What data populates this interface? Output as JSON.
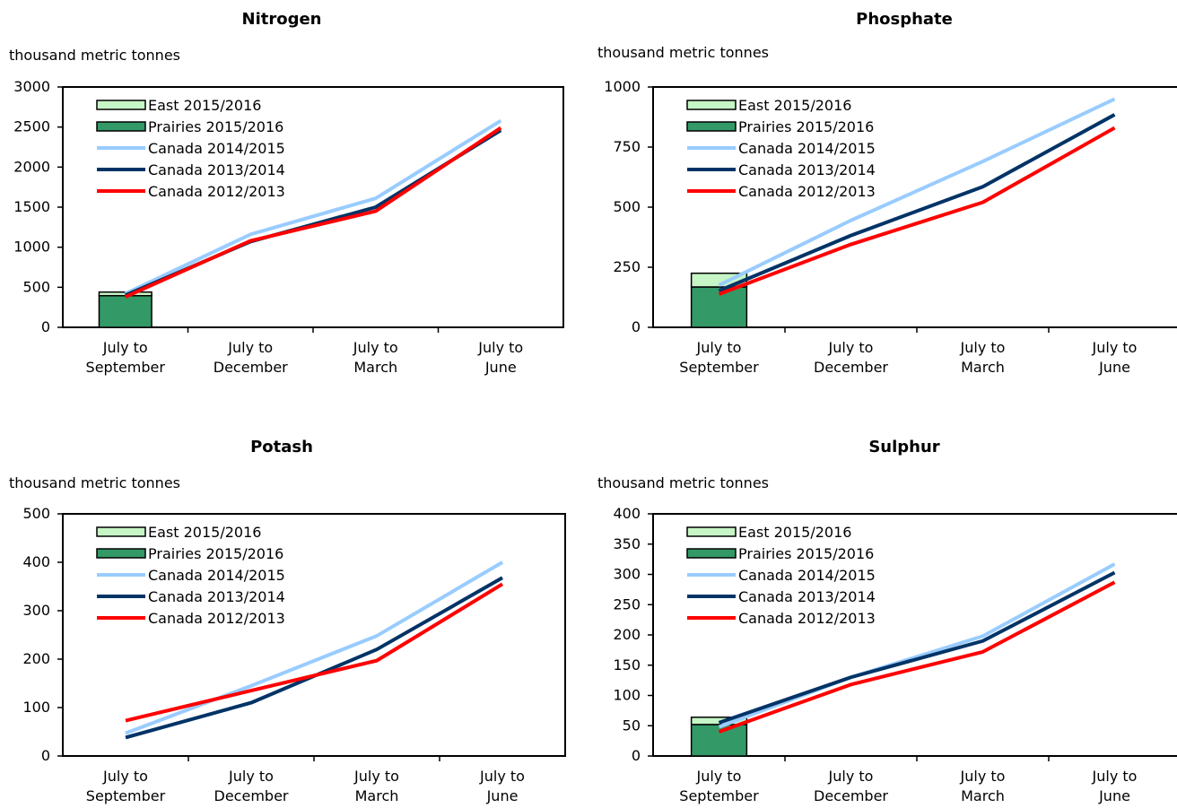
{
  "units": "thousand metric tonnes",
  "legend": [
    "East 2015/2016",
    "Prairies 2015/2016",
    "Canada 2014/2015",
    "Canada 2013/2014",
    "Canada 2012/2013"
  ],
  "colors": {
    "east_bar": "#c6f5c6",
    "prairies_bar": "#339966",
    "canada_2014_2015": "#99ccff",
    "canada_2013_2014": "#003366",
    "canada_2012_2013": "#ff0000",
    "axis": "#000000"
  },
  "chart_data": [
    {
      "type": "bar+line",
      "title": "Nitrogen",
      "ylabel": "thousand metric tonnes",
      "categories": [
        [
          "July to",
          "September"
        ],
        [
          "July to",
          "December"
        ],
        [
          "July to",
          "March"
        ],
        [
          "July to",
          "June"
        ]
      ],
      "yticks": [
        0,
        500,
        1000,
        1500,
        2000,
        2500,
        3000
      ],
      "ylim": [
        0,
        3000
      ],
      "bars": [
        {
          "name": "Prairies 2015/2016",
          "values": [
            395,
            null,
            null,
            null
          ]
        },
        {
          "name": "East 2015/2016",
          "values": [
            45,
            null,
            null,
            null
          ]
        }
      ],
      "series": [
        {
          "name": "Canada 2014/2015",
          "values": [
            420,
            1160,
            1610,
            2580
          ]
        },
        {
          "name": "Canada 2013/2014",
          "values": [
            400,
            1070,
            1500,
            2460
          ]
        },
        {
          "name": "Canada 2012/2013",
          "values": [
            380,
            1080,
            1450,
            2490
          ]
        }
      ],
      "legend_position": "top-left",
      "grid": false
    },
    {
      "type": "bar+line",
      "title": "Phosphate",
      "ylabel": "thousand metric tonnes",
      "categories": [
        [
          "July to",
          "September"
        ],
        [
          "July to",
          "December"
        ],
        [
          "July to",
          "March"
        ],
        [
          "July to",
          "June"
        ]
      ],
      "yticks": [
        0,
        250,
        500,
        750,
        1000
      ],
      "ylim": [
        0,
        1000
      ],
      "bars": [
        {
          "name": "Prairies 2015/2016",
          "values": [
            168,
            null,
            null,
            null
          ]
        },
        {
          "name": "East 2015/2016",
          "values": [
            57,
            null,
            null,
            null
          ]
        }
      ],
      "series": [
        {
          "name": "Canada 2014/2015",
          "values": [
            175,
            445,
            690,
            950
          ]
        },
        {
          "name": "Canada 2013/2014",
          "values": [
            152,
            382,
            585,
            885
          ]
        },
        {
          "name": "Canada 2012/2013",
          "values": [
            138,
            345,
            520,
            830
          ]
        }
      ],
      "legend_position": "top-left",
      "grid": false
    },
    {
      "type": "line",
      "title": "Potash",
      "ylabel": "thousand metric tonnes",
      "categories": [
        [
          "July to",
          "September"
        ],
        [
          "July to",
          "December"
        ],
        [
          "July to",
          "March"
        ],
        [
          "July to",
          "June"
        ]
      ],
      "yticks": [
        0,
        100,
        200,
        300,
        400,
        500
      ],
      "ylim": [
        0,
        500
      ],
      "bars": [
        {
          "name": "Prairies 2015/2016",
          "values": [
            null,
            null,
            null,
            null
          ]
        },
        {
          "name": "East 2015/2016",
          "values": [
            null,
            null,
            null,
            null
          ]
        }
      ],
      "series": [
        {
          "name": "Canada 2014/2015",
          "values": [
            47,
            145,
            248,
            400
          ]
        },
        {
          "name": "Canada 2013/2014",
          "values": [
            38,
            110,
            220,
            368
          ]
        },
        {
          "name": "Canada 2012/2013",
          "values": [
            73,
            135,
            197,
            355
          ]
        }
      ],
      "legend_position": "top-left",
      "grid": false
    },
    {
      "type": "bar+line",
      "title": "Sulphur",
      "ylabel": "thousand metric tonnes",
      "categories": [
        [
          "July to",
          "September"
        ],
        [
          "July to",
          "December"
        ],
        [
          "July to",
          "March"
        ],
        [
          "July to",
          "June"
        ]
      ],
      "yticks": [
        0,
        50,
        100,
        150,
        200,
        250,
        300,
        350,
        400
      ],
      "ylim": [
        0,
        400
      ],
      "bars": [
        {
          "name": "Prairies 2015/2016",
          "values": [
            52,
            null,
            null,
            null
          ]
        },
        {
          "name": "East 2015/2016",
          "values": [
            12,
            null,
            null,
            null
          ]
        }
      ],
      "series": [
        {
          "name": "Canada 2014/2015",
          "values": [
            48,
            130,
            198,
            317
          ]
        },
        {
          "name": "Canada 2013/2014",
          "values": [
            55,
            130,
            190,
            303
          ]
        },
        {
          "name": "Canada 2012/2013",
          "values": [
            40,
            118,
            172,
            287
          ]
        }
      ],
      "legend_position": "top-left",
      "grid": false
    }
  ]
}
